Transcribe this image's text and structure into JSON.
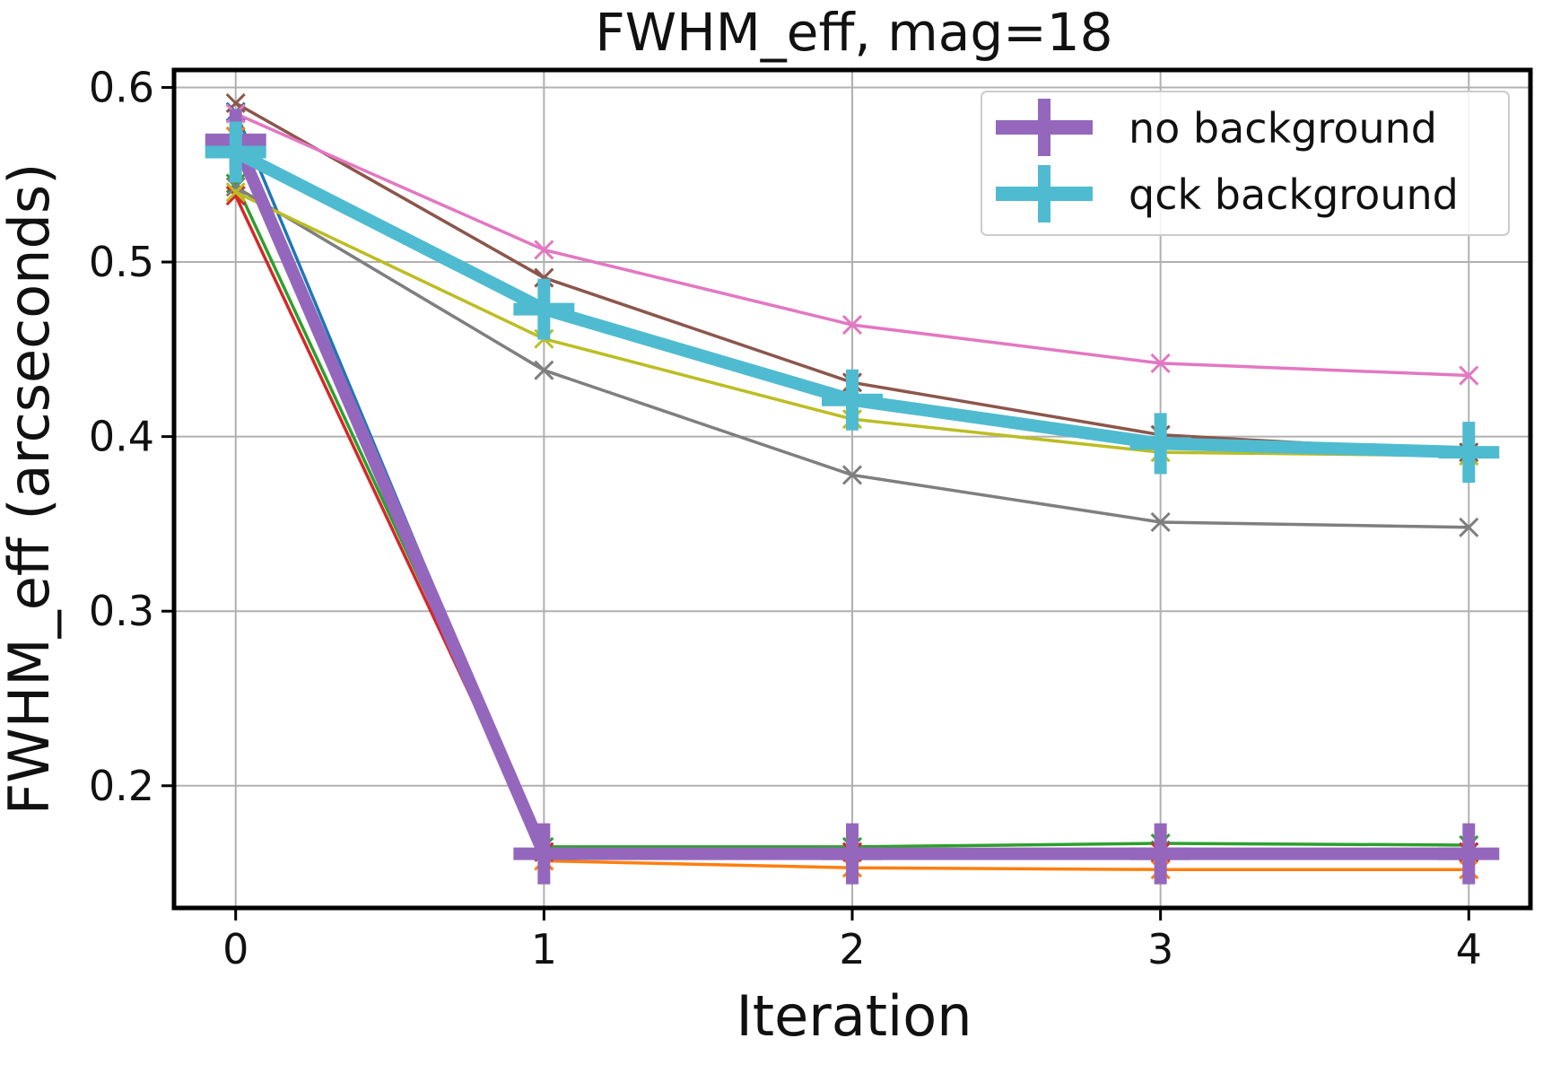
{
  "chart_data": {
    "type": "line",
    "title": "FWHM_eff, mag=18",
    "xlabel": "Iteration",
    "ylabel": "FWHM_eff (arcseconds)",
    "x": [
      0,
      1,
      2,
      3,
      4
    ],
    "xticks": [
      "0",
      "1",
      "2",
      "3",
      "4"
    ],
    "yticks": [
      "0.2",
      "0.3",
      "0.4",
      "0.5",
      "0.6"
    ],
    "ytick_values": [
      0.2,
      0.3,
      0.4,
      0.5,
      0.6
    ],
    "xlim": [
      -0.2,
      4.2
    ],
    "ylim": [
      0.13,
      0.61
    ],
    "grid": true,
    "legend_position": "top-right",
    "series": [
      {
        "color": "#1f77b4",
        "marker": "x",
        "emphasis": false,
        "values": [
          0.586,
          0.162,
          0.162,
          0.163,
          0.162
        ]
      },
      {
        "color": "#ff7f0e",
        "marker": "x",
        "emphasis": false,
        "values": [
          0.572,
          0.157,
          0.153,
          0.152,
          0.152
        ]
      },
      {
        "color": "#2ca02c",
        "marker": "x",
        "emphasis": false,
        "values": [
          0.545,
          0.165,
          0.165,
          0.167,
          0.166
        ]
      },
      {
        "color": "#d62728",
        "marker": "x",
        "emphasis": false,
        "values": [
          0.538,
          0.162,
          0.162,
          0.162,
          0.162
        ]
      },
      {
        "color": "#8c564b",
        "marker": "x",
        "emphasis": false,
        "values": [
          0.591,
          0.491,
          0.431,
          0.401,
          0.391
        ]
      },
      {
        "color": "#e377c2",
        "marker": "x",
        "emphasis": false,
        "values": [
          0.585,
          0.507,
          0.464,
          0.442,
          0.435
        ]
      },
      {
        "color": "#7f7f7f",
        "marker": "x",
        "emphasis": false,
        "values": [
          0.543,
          0.438,
          0.378,
          0.351,
          0.348
        ]
      },
      {
        "color": "#bcbd22",
        "marker": "x",
        "emphasis": false,
        "values": [
          0.54,
          0.456,
          0.41,
          0.391,
          0.389
        ]
      },
      {
        "name": "no background",
        "color": "#9467bd",
        "marker": "+",
        "emphasis": true,
        "values": [
          0.57,
          0.161,
          0.161,
          0.161,
          0.161
        ]
      },
      {
        "name": "qck background",
        "color": "#4fbbd0",
        "marker": "+",
        "emphasis": true,
        "values": [
          0.563,
          0.473,
          0.421,
          0.396,
          0.391
        ]
      }
    ],
    "legend": [
      {
        "label": "no background",
        "color": "#9467bd"
      },
      {
        "label": "qck background",
        "color": "#4fbbd0"
      }
    ]
  }
}
